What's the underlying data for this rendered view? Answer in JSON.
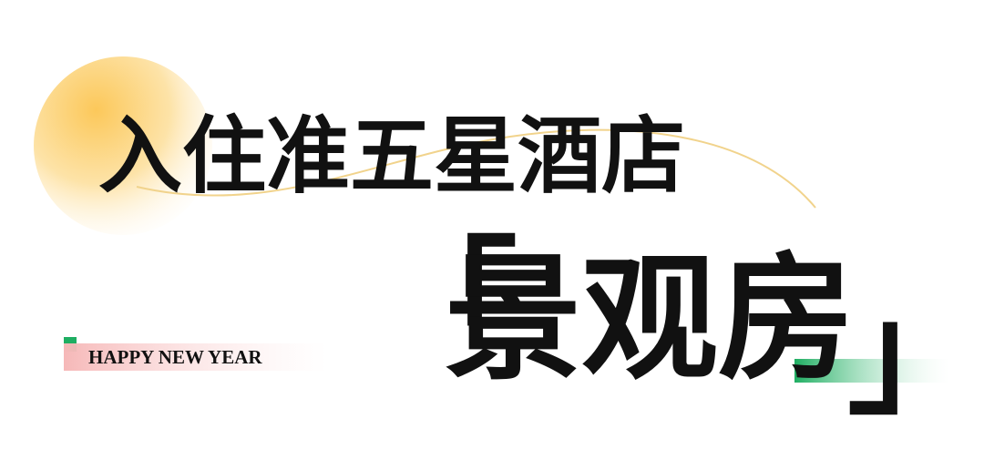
{
  "title": "入住准五星酒店",
  "bracket_open": "「",
  "headline": "景观房",
  "bracket_close": "」",
  "tagline": "HAPPY NEW YEAR"
}
